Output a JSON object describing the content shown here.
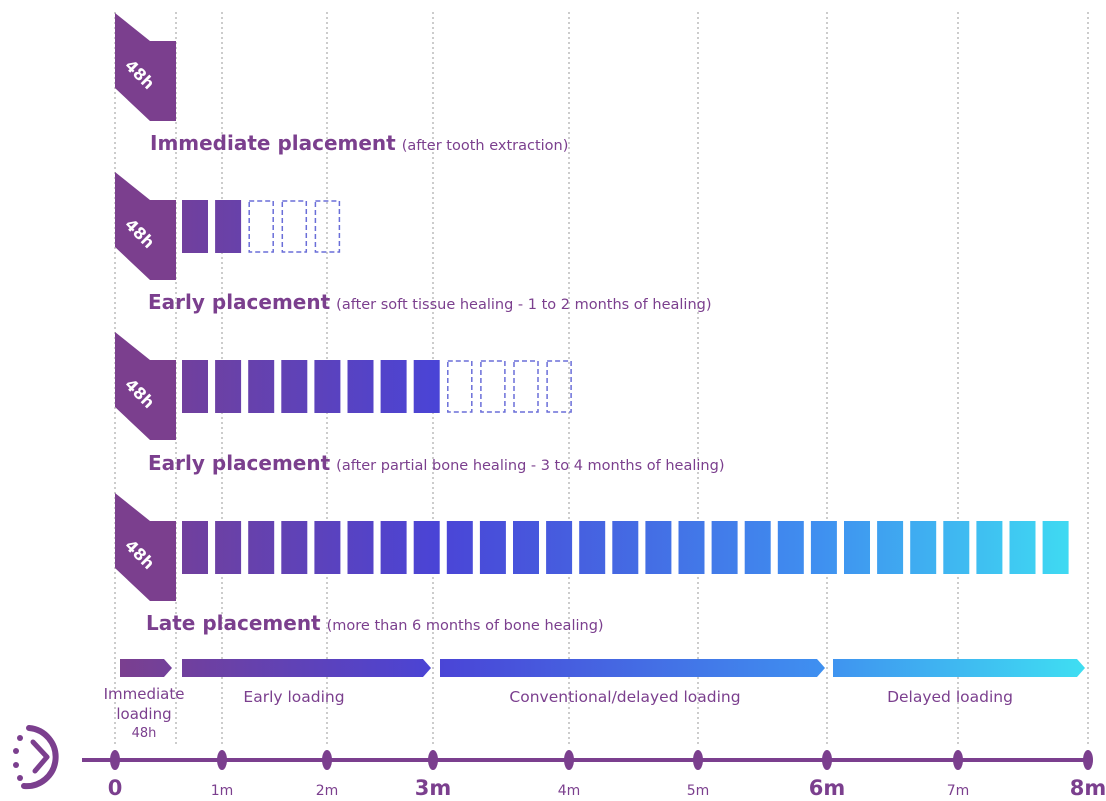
{
  "tag_label": "48h",
  "rows": [
    {
      "title": "Immediate placement",
      "note": "(after tooth extraction)",
      "solid": 0,
      "dashed": 0
    },
    {
      "title": "Early placement",
      "note": "(after soft tissue healing - 1 to 2 months of healing)",
      "solid": 2,
      "dashed": 3
    },
    {
      "title": "Early placement",
      "note": "(after partial bone healing - 3 to 4 months of healing)",
      "solid": 8,
      "dashed": 4
    },
    {
      "title": "Late placement",
      "note": "(more than 6 months of bone healing)",
      "solid": 27,
      "dashed": 0
    }
  ],
  "phases": [
    {
      "label": "Immediate",
      "label2": "loading",
      "sub": "48h"
    },
    {
      "label": "Early loading"
    },
    {
      "label": "Conventional/delayed loading"
    },
    {
      "label": "Delayed loading"
    }
  ],
  "ticks": [
    "0",
    "1m",
    "2m",
    "3m",
    "4m",
    "5m",
    "6m",
    "7m",
    "8m"
  ],
  "major_ticks": [
    "0",
    "3m",
    "6m",
    "8m"
  ],
  "icons": {
    "timeline": "clock-history-icon"
  },
  "colors": {
    "purple": "#7b3f8e",
    "gradient_start": "#6a3aa4",
    "gradient_mid": "#3f56e0",
    "gradient_end": "#3fe0f2",
    "dashed": "#6a6ed8",
    "dotted_line": "#bbbbbb"
  }
}
